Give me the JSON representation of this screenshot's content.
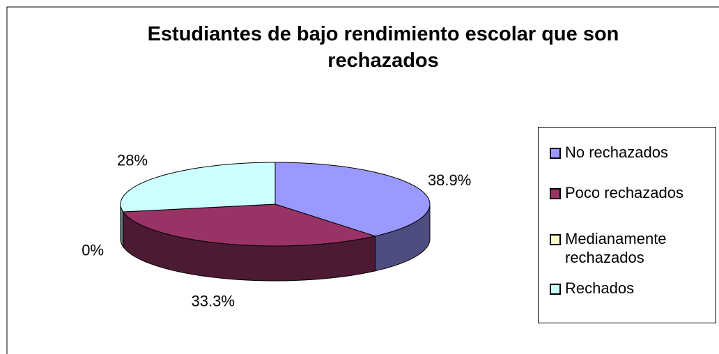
{
  "chart_data": {
    "type": "pie",
    "title": "Estudiantes de bajo rendimiento escolar que son rechazados",
    "categories": [
      "No rechazados",
      "Poco rechazados",
      "Medianamente rechazados",
      "Rechados"
    ],
    "values": [
      38.9,
      33.3,
      0,
      28
    ],
    "value_labels": [
      "38.9%",
      "33.3%",
      "0%",
      "28%"
    ],
    "colors": [
      "#9999ff",
      "#993366",
      "#ffffcc",
      "#ccffff"
    ],
    "legend": "right"
  }
}
